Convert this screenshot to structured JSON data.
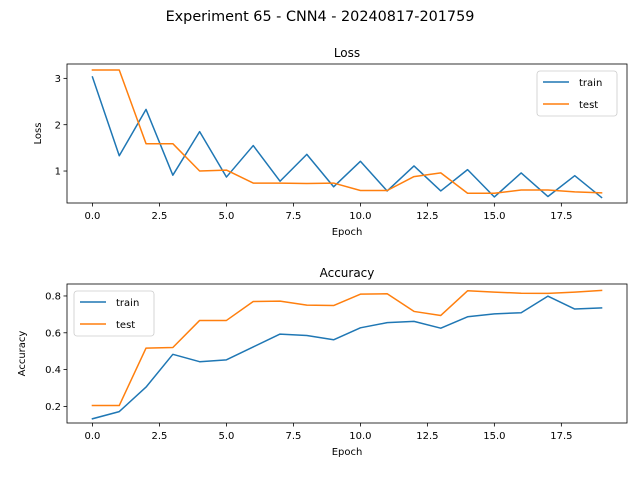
{
  "suptitle": "Experiment 65 - CNN4 - 20240817-201759",
  "colors": {
    "train": "#1f77b4",
    "test": "#ff7f0e"
  },
  "chart_data": [
    {
      "type": "line",
      "title": "Loss",
      "xlabel": "Epoch",
      "ylabel": "Loss",
      "xlim": [
        -0.95,
        19.95
      ],
      "ylim": [
        0.31,
        3.31
      ],
      "xticks": [
        0,
        2.5,
        5,
        7.5,
        10,
        12.5,
        15,
        17.5
      ],
      "xtick_labels": [
        "0.0",
        "2.5",
        "5.0",
        "7.5",
        "10.0",
        "12.5",
        "15.0",
        "17.5"
      ],
      "yticks": [
        1,
        2,
        3
      ],
      "ytick_labels": [
        "1",
        "2",
        "3"
      ],
      "legend_loc": "upper right",
      "x": [
        0,
        1,
        2,
        3,
        4,
        5,
        6,
        7,
        8,
        9,
        10,
        11,
        12,
        13,
        14,
        15,
        16,
        17,
        18,
        19
      ],
      "series": [
        {
          "name": "train",
          "values": [
            3.03,
            1.33,
            2.33,
            0.91,
            1.85,
            0.87,
            1.55,
            0.78,
            1.36,
            0.66,
            1.21,
            0.57,
            1.11,
            0.57,
            1.03,
            0.44,
            0.96,
            0.45,
            0.9,
            0.43
          ]
        },
        {
          "name": "test",
          "values": [
            3.18,
            3.18,
            1.59,
            1.59,
            1.0,
            1.02,
            0.74,
            0.74,
            0.73,
            0.74,
            0.58,
            0.58,
            0.88,
            0.96,
            0.52,
            0.52,
            0.59,
            0.59,
            0.55,
            0.53
          ]
        }
      ]
    },
    {
      "type": "line",
      "title": "Accuracy",
      "xlabel": "Epoch",
      "ylabel": "Accuracy",
      "xlim": [
        -0.95,
        19.95
      ],
      "ylim": [
        0.11,
        0.865
      ],
      "xticks": [
        0,
        2.5,
        5,
        7.5,
        10,
        12.5,
        15,
        17.5
      ],
      "xtick_labels": [
        "0.0",
        "2.5",
        "5.0",
        "7.5",
        "10.0",
        "12.5",
        "15.0",
        "17.5"
      ],
      "yticks": [
        0.2,
        0.4,
        0.6,
        0.8
      ],
      "ytick_labels": [
        "0.2",
        "0.4",
        "0.6",
        "0.8"
      ],
      "legend_loc": "upper left",
      "x": [
        0,
        1,
        2,
        3,
        4,
        5,
        6,
        7,
        8,
        9,
        10,
        11,
        12,
        13,
        14,
        15,
        16,
        17,
        18,
        19
      ],
      "series": [
        {
          "name": "train",
          "values": [
            0.133,
            0.172,
            0.305,
            0.483,
            0.443,
            0.453,
            0.523,
            0.593,
            0.585,
            0.562,
            0.627,
            0.655,
            0.662,
            0.625,
            0.687,
            0.703,
            0.709,
            0.799,
            0.729,
            0.735
          ]
        },
        {
          "name": "test",
          "values": [
            0.205,
            0.205,
            0.517,
            0.52,
            0.667,
            0.667,
            0.77,
            0.772,
            0.75,
            0.748,
            0.81,
            0.812,
            0.716,
            0.694,
            0.828,
            0.821,
            0.815,
            0.814,
            0.821,
            0.83
          ]
        }
      ]
    }
  ]
}
